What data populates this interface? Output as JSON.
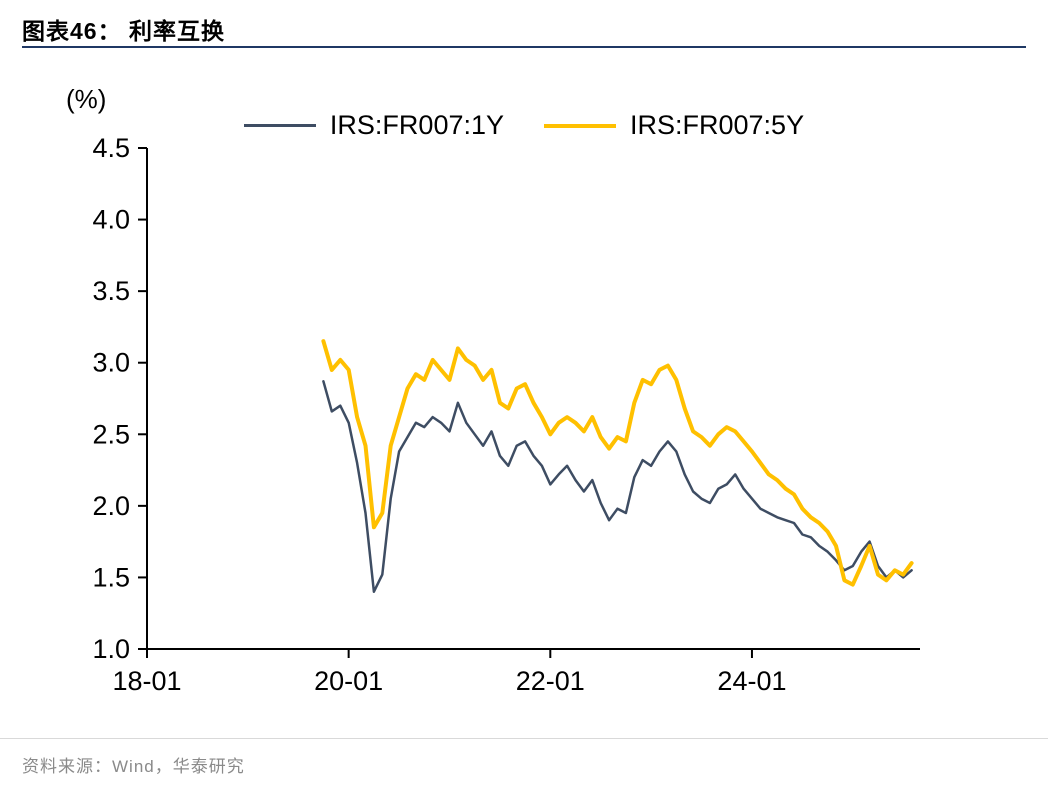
{
  "header": {
    "title": "图表46：  利率互换"
  },
  "unit_label": "(%)",
  "footer": {
    "source": "资料来源：Wind，华泰研究"
  },
  "colors": {
    "series_1y": "#3E4D63",
    "series_5y": "#FFC000",
    "title_rule": "#1F3864",
    "footer_rule": "#D9D9D9",
    "footer_text": "#8A8A8A",
    "axis": "#000000"
  },
  "chart_data": {
    "type": "line",
    "title": "利率互换",
    "xlabel": "",
    "ylabel": "(%)",
    "grid": false,
    "legend_position": "top-center",
    "xlim": [
      "2018-01",
      "2025-09"
    ],
    "ylim": [
      1.0,
      4.5
    ],
    "y_ticks": [
      1.0,
      1.5,
      2.0,
      2.5,
      3.0,
      3.5,
      4.0,
      4.5
    ],
    "x_ticks": [
      {
        "t": "2018-01",
        "label": "18-01"
      },
      {
        "t": "2020-01",
        "label": "20-01"
      },
      {
        "t": "2022-01",
        "label": "22-01"
      },
      {
        "t": "2024-01",
        "label": "24-01"
      }
    ],
    "x": [
      "2019-10",
      "2019-11",
      "2019-12",
      "2020-01",
      "2020-02",
      "2020-03",
      "2020-04",
      "2020-05",
      "2020-06",
      "2020-07",
      "2020-08",
      "2020-09",
      "2020-10",
      "2020-11",
      "2020-12",
      "2021-01",
      "2021-02",
      "2021-03",
      "2021-04",
      "2021-05",
      "2021-06",
      "2021-07",
      "2021-08",
      "2021-09",
      "2021-10",
      "2021-11",
      "2021-12",
      "2022-01",
      "2022-02",
      "2022-03",
      "2022-04",
      "2022-05",
      "2022-06",
      "2022-07",
      "2022-08",
      "2022-09",
      "2022-10",
      "2022-11",
      "2022-12",
      "2023-01",
      "2023-02",
      "2023-03",
      "2023-04",
      "2023-05",
      "2023-06",
      "2023-07",
      "2023-08",
      "2023-09",
      "2023-10",
      "2023-11",
      "2023-12",
      "2024-01",
      "2024-02",
      "2024-03",
      "2024-04",
      "2024-05",
      "2024-06",
      "2024-07",
      "2024-08",
      "2024-09",
      "2024-10",
      "2024-11",
      "2024-12",
      "2025-01",
      "2025-02",
      "2025-03",
      "2025-04",
      "2025-05",
      "2025-06",
      "2025-07",
      "2025-08"
    ],
    "series": [
      {
        "name": "IRS:FR007:1Y",
        "color": "#3E4D63",
        "width": 2.5,
        "values": [
          2.87,
          2.66,
          2.7,
          2.58,
          2.3,
          1.95,
          1.4,
          1.52,
          2.05,
          2.38,
          2.48,
          2.58,
          2.55,
          2.62,
          2.58,
          2.52,
          2.72,
          2.58,
          2.5,
          2.42,
          2.52,
          2.35,
          2.28,
          2.42,
          2.45,
          2.35,
          2.28,
          2.15,
          2.22,
          2.28,
          2.18,
          2.1,
          2.18,
          2.02,
          1.9,
          1.98,
          1.95,
          2.2,
          2.32,
          2.28,
          2.38,
          2.45,
          2.38,
          2.22,
          2.1,
          2.05,
          2.02,
          2.12,
          2.15,
          2.22,
          2.12,
          2.05,
          1.98,
          1.95,
          1.92,
          1.9,
          1.88,
          1.8,
          1.78,
          1.72,
          1.68,
          1.62,
          1.55,
          1.58,
          1.68,
          1.75,
          1.58,
          1.5,
          1.55,
          1.5,
          1.55
        ]
      },
      {
        "name": "IRS:FR007:5Y",
        "color": "#FFC000",
        "width": 4,
        "values": [
          3.15,
          2.95,
          3.02,
          2.95,
          2.62,
          2.42,
          1.85,
          1.95,
          2.42,
          2.62,
          2.82,
          2.92,
          2.88,
          3.02,
          2.95,
          2.88,
          3.1,
          3.02,
          2.98,
          2.88,
          2.95,
          2.72,
          2.68,
          2.82,
          2.85,
          2.72,
          2.62,
          2.5,
          2.58,
          2.62,
          2.58,
          2.52,
          2.62,
          2.48,
          2.4,
          2.48,
          2.45,
          2.72,
          2.88,
          2.85,
          2.95,
          2.98,
          2.88,
          2.68,
          2.52,
          2.48,
          2.42,
          2.5,
          2.55,
          2.52,
          2.45,
          2.38,
          2.3,
          2.22,
          2.18,
          2.12,
          2.08,
          1.98,
          1.92,
          1.88,
          1.82,
          1.72,
          1.48,
          1.45,
          1.58,
          1.72,
          1.52,
          1.48,
          1.55,
          1.52,
          1.6
        ]
      }
    ]
  }
}
